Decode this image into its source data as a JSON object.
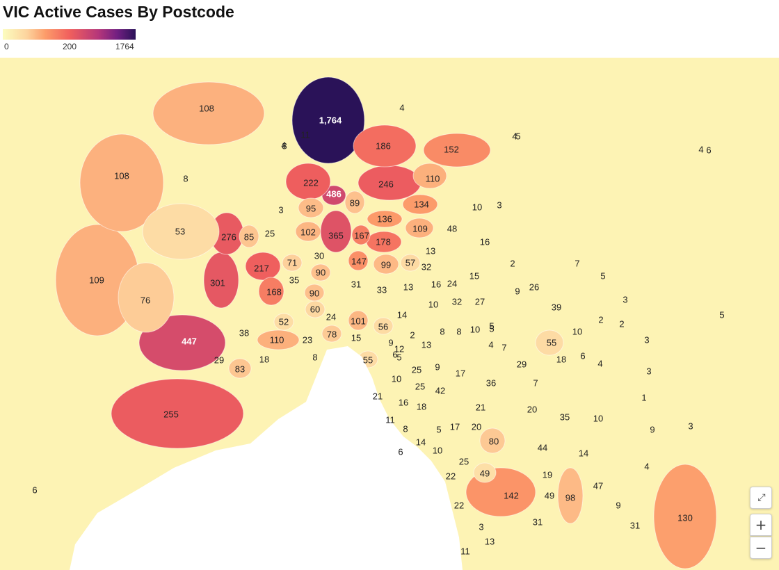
{
  "title": "VIC Active Cases By Postcode",
  "legend": {
    "min": "0",
    "mid": "200",
    "max": "1764"
  },
  "controls": {
    "fullscreen_icon": "fullscreen-icon",
    "zoom_in": "+",
    "zoom_out": "−"
  },
  "colors": {
    "water": "#ffffff",
    "background": "#fdf3b4",
    "scale": [
      "#fcfdbf",
      "#fdd49e",
      "#fc9c6a",
      "#f1605d",
      "#b5367a",
      "#721f81",
      "#2a1258"
    ]
  },
  "regions": [
    {
      "label": "1,764",
      "value": 1764
    },
    {
      "label": "486",
      "value": 486
    },
    {
      "label": "447",
      "value": 447
    },
    {
      "label": "365",
      "value": 365
    },
    {
      "label": "301",
      "value": 301
    },
    {
      "label": "276",
      "value": 276
    },
    {
      "label": "255",
      "value": 255
    },
    {
      "label": "246",
      "value": 246
    },
    {
      "label": "222",
      "value": 222
    },
    {
      "label": "217",
      "value": 217
    },
    {
      "label": "186",
      "value": 186
    },
    {
      "label": "178",
      "value": 178
    },
    {
      "label": "168",
      "value": 168
    },
    {
      "label": "167",
      "value": 167
    },
    {
      "label": "152",
      "value": 152
    },
    {
      "label": "147",
      "value": 147
    },
    {
      "label": "142",
      "value": 142
    },
    {
      "label": "136",
      "value": 136
    },
    {
      "label": "134",
      "value": 134
    },
    {
      "label": "130",
      "value": 130
    },
    {
      "label": "110",
      "value": 110
    },
    {
      "label": "110",
      "value": 110
    },
    {
      "label": "109",
      "value": 109
    },
    {
      "label": "109",
      "value": 109
    },
    {
      "label": "108",
      "value": 108
    },
    {
      "label": "108",
      "value": 108
    },
    {
      "label": "102",
      "value": 102
    },
    {
      "label": "101",
      "value": 101
    },
    {
      "label": "99",
      "value": 99
    },
    {
      "label": "98",
      "value": 98
    },
    {
      "label": "95",
      "value": 95
    },
    {
      "label": "90",
      "value": 90
    },
    {
      "label": "90",
      "value": 90
    },
    {
      "label": "89",
      "value": 89
    },
    {
      "label": "85",
      "value": 85
    },
    {
      "label": "83",
      "value": 83
    },
    {
      "label": "80",
      "value": 80
    },
    {
      "label": "78",
      "value": 78
    },
    {
      "label": "76",
      "value": 76
    },
    {
      "label": "71",
      "value": 71
    },
    {
      "label": "60",
      "value": 60
    },
    {
      "label": "57",
      "value": 57
    },
    {
      "label": "56",
      "value": 56
    },
    {
      "label": "55",
      "value": 55
    },
    {
      "label": "55",
      "value": 55
    },
    {
      "label": "53",
      "value": 53
    },
    {
      "label": "52",
      "value": 52
    },
    {
      "label": "49",
      "value": 49
    },
    {
      "label": "49",
      "value": 49
    },
    {
      "label": "48",
      "value": 48
    },
    {
      "label": "47",
      "value": 47
    },
    {
      "label": "44",
      "value": 44
    },
    {
      "label": "42",
      "value": 42
    },
    {
      "label": "39",
      "value": 39
    },
    {
      "label": "38",
      "value": 38
    },
    {
      "label": "36",
      "value": 36
    },
    {
      "label": "35",
      "value": 35
    },
    {
      "label": "35",
      "value": 35
    },
    {
      "label": "33",
      "value": 33
    },
    {
      "label": "32",
      "value": 32
    },
    {
      "label": "32",
      "value": 32
    },
    {
      "label": "31",
      "value": 31
    },
    {
      "label": "31",
      "value": 31
    },
    {
      "label": "31",
      "value": 31
    },
    {
      "label": "30",
      "value": 30
    },
    {
      "label": "29",
      "value": 29
    },
    {
      "label": "29",
      "value": 29
    },
    {
      "label": "27",
      "value": 27
    },
    {
      "label": "26",
      "value": 26
    },
    {
      "label": "25",
      "value": 25
    },
    {
      "label": "25",
      "value": 25
    },
    {
      "label": "25",
      "value": 25
    },
    {
      "label": "25",
      "value": 25
    },
    {
      "label": "24",
      "value": 24
    },
    {
      "label": "24",
      "value": 24
    },
    {
      "label": "23",
      "value": 23
    },
    {
      "label": "22",
      "value": 22
    },
    {
      "label": "22",
      "value": 22
    },
    {
      "label": "21",
      "value": 21
    },
    {
      "label": "21",
      "value": 21
    },
    {
      "label": "20",
      "value": 20
    },
    {
      "label": "20",
      "value": 20
    },
    {
      "label": "19",
      "value": 19
    },
    {
      "label": "18",
      "value": 18
    },
    {
      "label": "18",
      "value": 18
    },
    {
      "label": "18",
      "value": 18
    },
    {
      "label": "17",
      "value": 17
    },
    {
      "label": "17",
      "value": 17
    },
    {
      "label": "16",
      "value": 16
    },
    {
      "label": "16",
      "value": 16
    },
    {
      "label": "16",
      "value": 16
    },
    {
      "label": "15",
      "value": 15
    },
    {
      "label": "15",
      "value": 15
    },
    {
      "label": "14",
      "value": 14
    },
    {
      "label": "14",
      "value": 14
    },
    {
      "label": "14",
      "value": 14
    },
    {
      "label": "13",
      "value": 13
    },
    {
      "label": "13",
      "value": 13
    },
    {
      "label": "13",
      "value": 13
    },
    {
      "label": "13",
      "value": 13
    },
    {
      "label": "12",
      "value": 12
    },
    {
      "label": "11",
      "value": 11
    },
    {
      "label": "11",
      "value": 11
    },
    {
      "label": "11",
      "value": 11
    },
    {
      "label": "10",
      "value": 10
    },
    {
      "label": "10",
      "value": 10
    },
    {
      "label": "10",
      "value": 10
    },
    {
      "label": "10",
      "value": 10
    },
    {
      "label": "10",
      "value": 10
    },
    {
      "label": "10",
      "value": 10
    },
    {
      "label": "10",
      "value": 10
    },
    {
      "label": "9",
      "value": 9
    },
    {
      "label": "9",
      "value": 9
    },
    {
      "label": "9",
      "value": 9
    },
    {
      "label": "9",
      "value": 9
    },
    {
      "label": "9",
      "value": 9
    },
    {
      "label": "8",
      "value": 8
    },
    {
      "label": "8",
      "value": 8
    },
    {
      "label": "8",
      "value": 8
    },
    {
      "label": "8",
      "value": 8
    },
    {
      "label": "8",
      "value": 8
    },
    {
      "label": "8",
      "value": 8
    },
    {
      "label": "7",
      "value": 7
    },
    {
      "label": "7",
      "value": 7
    },
    {
      "label": "7",
      "value": 7
    },
    {
      "label": "6",
      "value": 6
    },
    {
      "label": "6",
      "value": 6
    },
    {
      "label": "6",
      "value": 6
    },
    {
      "label": "6",
      "value": 6
    },
    {
      "label": "6",
      "value": 6
    },
    {
      "label": "5",
      "value": 5
    },
    {
      "label": "5",
      "value": 5
    },
    {
      "label": "5",
      "value": 5
    },
    {
      "label": "5",
      "value": 5
    },
    {
      "label": "5",
      "value": 5
    },
    {
      "label": "5",
      "value": 5
    },
    {
      "label": "5",
      "value": 5
    },
    {
      "label": "4",
      "value": 4
    },
    {
      "label": "4",
      "value": 4
    },
    {
      "label": "4",
      "value": 4
    },
    {
      "label": "4",
      "value": 4
    },
    {
      "label": "4",
      "value": 4
    },
    {
      "label": "4",
      "value": 4
    },
    {
      "label": "4",
      "value": 4
    },
    {
      "label": "3",
      "value": 3
    },
    {
      "label": "3",
      "value": 3
    },
    {
      "label": "3",
      "value": 3
    },
    {
      "label": "3",
      "value": 3
    },
    {
      "label": "3",
      "value": 3
    },
    {
      "label": "3",
      "value": 3
    },
    {
      "label": "3",
      "value": 3
    },
    {
      "label": "2",
      "value": 2
    },
    {
      "label": "2",
      "value": 2
    },
    {
      "label": "2",
      "value": 2
    },
    {
      "label": "2",
      "value": 2
    },
    {
      "label": "1",
      "value": 1
    },
    {
      "label": "1",
      "value": 1
    },
    {
      "label": "1",
      "value": 1
    },
    {
      "label": "1",
      "value": 1
    },
    {
      "label": "1",
      "value": 1
    },
    {
      "label": "1",
      "value": 1
    }
  ]
}
